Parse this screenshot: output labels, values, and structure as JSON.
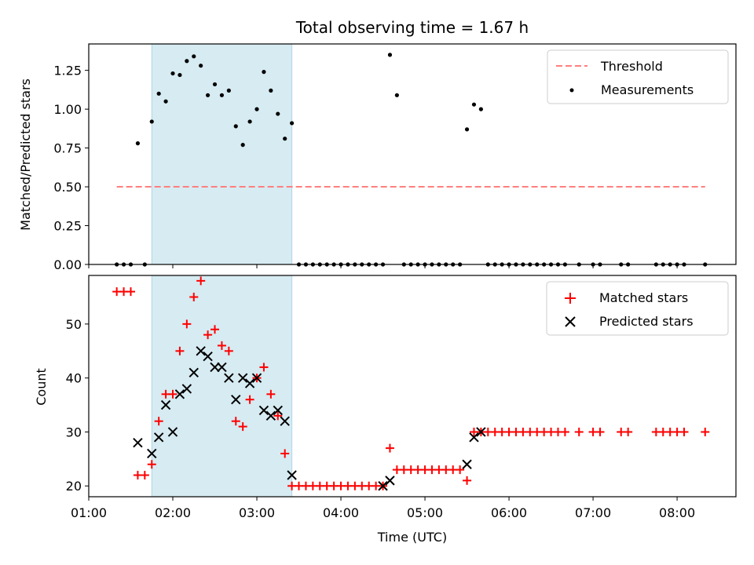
{
  "chart_data": [
    {
      "type": "scatter",
      "title": "Total observing time = 1.67 h",
      "xlabel": "",
      "ylabel": "Matched/Predicted stars",
      "ylim": [
        0,
        1.42
      ],
      "yticks": [
        "0.00",
        "0.25",
        "0.50",
        "0.75",
        "1.00",
        "1.25"
      ],
      "xlim_hours": [
        1.0,
        8.7
      ],
      "shaded_interval": {
        "start": "01:45",
        "end": "03:25",
        "color": "#add8e6"
      },
      "legend": {
        "position": "top-right",
        "entries": [
          "Threshold",
          "Measurements"
        ]
      },
      "series": [
        {
          "name": "Threshold",
          "style": "dashed-line",
          "color": "#ff7f7f",
          "x": [
            "01:20",
            "08:20"
          ],
          "y": [
            0.5,
            0.5
          ]
        },
        {
          "name": "Measurements",
          "style": "dot",
          "color": "#000000",
          "x": [
            "01:20",
            "01:25",
            "01:30",
            "01:35",
            "01:40",
            "01:45",
            "01:50",
            "01:55",
            "02:00",
            "02:05",
            "02:10",
            "02:15",
            "02:20",
            "02:25",
            "02:30",
            "02:35",
            "02:40",
            "02:45",
            "02:50",
            "02:55",
            "03:00",
            "03:05",
            "03:10",
            "03:15",
            "03:20",
            "03:25",
            "03:30",
            "03:35",
            "03:40",
            "03:45",
            "03:50",
            "03:55",
            "04:00",
            "04:05",
            "04:10",
            "04:15",
            "04:20",
            "04:25",
            "04:30",
            "04:35",
            "04:40",
            "04:45",
            "04:50",
            "04:55",
            "05:00",
            "05:05",
            "05:10",
            "05:15",
            "05:20",
            "05:25",
            "05:30",
            "05:35",
            "05:40",
            "05:45",
            "05:50",
            "05:55",
            "06:00",
            "06:05",
            "06:10",
            "06:15",
            "06:20",
            "06:25",
            "06:30",
            "06:35",
            "06:40",
            "06:50",
            "07:00",
            "07:05",
            "07:20",
            "07:25",
            "07:45",
            "07:50",
            "07:55",
            "08:00",
            "08:05",
            "08:20"
          ],
          "y": [
            0,
            0,
            0,
            0.78,
            0,
            0.92,
            1.1,
            1.05,
            1.23,
            1.22,
            1.31,
            1.34,
            1.28,
            1.09,
            1.16,
            1.09,
            1.12,
            0.89,
            0.77,
            0.92,
            1.0,
            1.24,
            1.12,
            0.97,
            0.81,
            0.91,
            0,
            0,
            0,
            0,
            0,
            0,
            0,
            0,
            0,
            0,
            0,
            0,
            0,
            1.35,
            1.09,
            0,
            0,
            0,
            0,
            0,
            0,
            0,
            0,
            0,
            0.87,
            1.03,
            1.0,
            0,
            0,
            0,
            0,
            0,
            0,
            0,
            0,
            0,
            0,
            0,
            0,
            0,
            0,
            0,
            0,
            0,
            0,
            0,
            0,
            0,
            0,
            0
          ]
        }
      ],
      "xticks": []
    },
    {
      "type": "scatter",
      "title": "",
      "xlabel": "Time (UTC)",
      "ylabel": "Count",
      "ylim": [
        18,
        59
      ],
      "yticks": [
        "20",
        "30",
        "40",
        "50"
      ],
      "xlim_hours": [
        1.0,
        8.7
      ],
      "xticks": [
        "01:00",
        "02:00",
        "03:00",
        "04:00",
        "05:00",
        "06:00",
        "07:00",
        "08:00"
      ],
      "shaded_interval": {
        "start": "01:45",
        "end": "03:25",
        "color": "#add8e6"
      },
      "legend": {
        "position": "top-right",
        "entries": [
          "Matched stars",
          "Predicted stars"
        ]
      },
      "series": [
        {
          "name": "Matched stars",
          "marker": "+",
          "color": "#ff0000",
          "x": [
            "01:20",
            "01:25",
            "01:30",
            "01:35",
            "01:40",
            "01:45",
            "01:50",
            "01:55",
            "02:00",
            "02:05",
            "02:10",
            "02:15",
            "02:20",
            "02:25",
            "02:30",
            "02:35",
            "02:40",
            "02:45",
            "02:50",
            "02:55",
            "03:00",
            "03:05",
            "03:10",
            "03:15",
            "03:20",
            "03:25",
            "03:30",
            "03:35",
            "03:40",
            "03:45",
            "03:50",
            "03:55",
            "04:00",
            "04:05",
            "04:10",
            "04:15",
            "04:20",
            "04:25",
            "04:30",
            "04:35",
            "04:40",
            "04:45",
            "04:50",
            "04:55",
            "05:00",
            "05:05",
            "05:10",
            "05:15",
            "05:20",
            "05:25",
            "05:30",
            "05:35",
            "05:40",
            "05:45",
            "05:50",
            "05:55",
            "06:00",
            "06:05",
            "06:10",
            "06:15",
            "06:20",
            "06:25",
            "06:30",
            "06:35",
            "06:40",
            "06:50",
            "07:00",
            "07:05",
            "07:20",
            "07:25",
            "07:45",
            "07:50",
            "07:55",
            "08:00",
            "08:05",
            "08:20"
          ],
          "y": [
            56,
            56,
            56,
            22,
            22,
            24,
            32,
            37,
            37,
            45,
            50,
            55,
            58,
            48,
            49,
            46,
            45,
            32,
            31,
            36,
            40,
            42,
            37,
            33,
            26,
            20,
            20,
            20,
            20,
            20,
            20,
            20,
            20,
            20,
            20,
            20,
            20,
            20,
            20,
            27,
            23,
            23,
            23,
            23,
            23,
            23,
            23,
            23,
            23,
            23,
            21,
            30,
            30,
            30,
            30,
            30,
            30,
            30,
            30,
            30,
            30,
            30,
            30,
            30,
            30,
            30,
            30,
            30,
            30,
            30,
            30,
            30,
            30,
            30,
            30,
            30
          ]
        },
        {
          "name": "Predicted stars",
          "marker": "x",
          "color": "#000000",
          "x": [
            "01:35",
            "01:45",
            "01:50",
            "01:55",
            "02:00",
            "02:05",
            "02:10",
            "02:15",
            "02:20",
            "02:25",
            "02:30",
            "02:35",
            "02:40",
            "02:45",
            "02:50",
            "02:55",
            "03:00",
            "03:05",
            "03:10",
            "03:15",
            "03:20",
            "03:25",
            "04:30",
            "04:35",
            "05:30",
            "05:35",
            "05:40"
          ],
          "y": [
            28,
            26,
            29,
            35,
            30,
            37,
            38,
            41,
            45,
            44,
            42,
            42,
            40,
            36,
            40,
            39,
            40,
            34,
            33,
            34,
            32,
            22,
            20,
            21,
            24,
            29,
            30
          ]
        }
      ]
    }
  ]
}
